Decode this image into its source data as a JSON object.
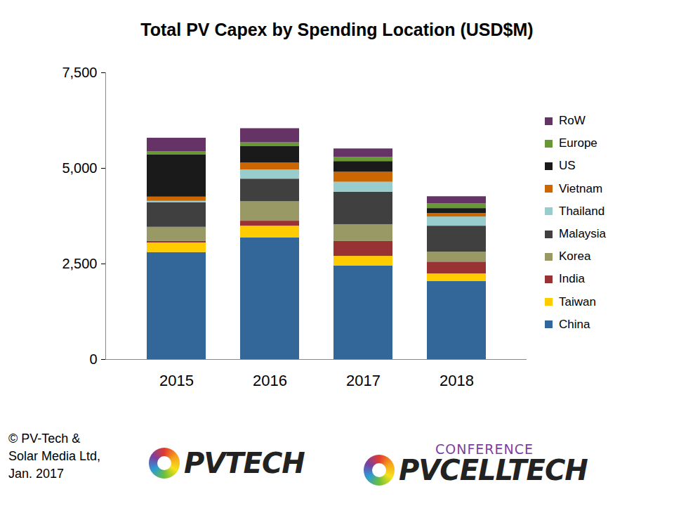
{
  "chart_data": {
    "type": "bar",
    "title": "Total PV Capex by Spending Location (USD$M)",
    "stacked": true,
    "grid": false,
    "legend": "right",
    "categories": [
      "2015",
      "2016",
      "2017",
      "2018"
    ],
    "ylim": [
      0,
      7500
    ],
    "yticks": [
      0,
      {
        "value": 2500,
        "label": "2,500"
      },
      {
        "value": 5000,
        "label": "5,000"
      },
      {
        "value": 7500,
        "label": "7,500"
      }
    ],
    "series": [
      {
        "name": "China",
        "color": "#336699",
        "values": [
          2800,
          3180,
          2450,
          2040
        ]
      },
      {
        "name": "Taiwan",
        "color": "#FFCC00",
        "values": [
          250,
          310,
          250,
          200
        ]
      },
      {
        "name": "India",
        "color": "#993333",
        "values": [
          40,
          130,
          390,
          310
        ]
      },
      {
        "name": "Korea",
        "color": "#999966",
        "values": [
          370,
          510,
          440,
          260
        ]
      },
      {
        "name": "Malaysia",
        "color": "#404040",
        "values": [
          640,
          590,
          850,
          680
        ]
      },
      {
        "name": "Thailand",
        "color": "#99CCCC",
        "values": [
          40,
          240,
          260,
          240
        ]
      },
      {
        "name": "Vietnam",
        "color": "#CC6600",
        "values": [
          110,
          180,
          260,
          90
        ]
      },
      {
        "name": "US",
        "color": "#1A1A1A",
        "values": [
          1100,
          440,
          280,
          130
        ]
      },
      {
        "name": "Europe",
        "color": "#669933",
        "values": [
          90,
          90,
          110,
          130
        ]
      },
      {
        "name": "RoW",
        "color": "#663366",
        "values": [
          350,
          370,
          220,
          180
        ]
      }
    ],
    "copyright": [
      "© PV-Tech &",
      "Solar Media Ltd,",
      "Jan. 2017"
    ],
    "logos": [
      "PVTECH",
      "CONFERENCE",
      "PVCELLTECH"
    ]
  }
}
